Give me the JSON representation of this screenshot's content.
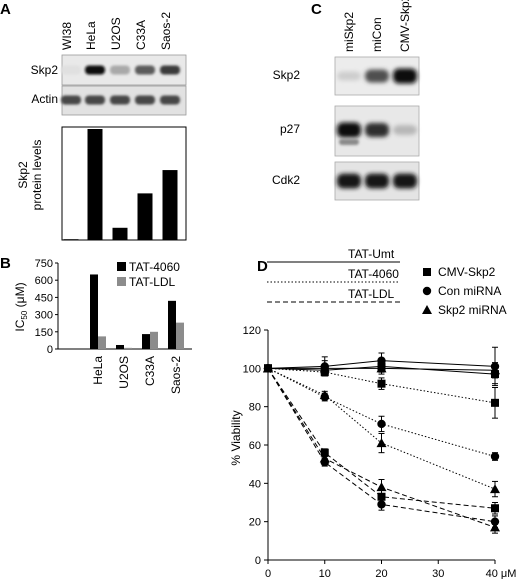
{
  "panels": {
    "A": {
      "label": "A",
      "lanes": [
        "WI38",
        "HeLa",
        "U2OS",
        "C33A",
        "Saos-2"
      ],
      "blots": [
        "Skp2",
        "Actin"
      ],
      "ylabel_lines": [
        "Skp2",
        "protein levels"
      ],
      "chart_data": {
        "type": "bar",
        "categories": [
          "WI38",
          "HeLa",
          "U2OS",
          "C33A",
          "Saos-2"
        ],
        "values": [
          0,
          100,
          11,
          42,
          63
        ],
        "ylim": [
          0,
          100
        ]
      },
      "band_intensity": {
        "Skp2": [
          0.05,
          1.0,
          0.3,
          0.65,
          0.8
        ],
        "Actin": [
          0.75,
          0.75,
          0.75,
          0.75,
          0.75
        ]
      }
    },
    "B": {
      "label": "B",
      "ylabel_main": "IC",
      "ylabel_sub": "50",
      "ylabel_unit": " (μM)",
      "chart_data": {
        "type": "bar",
        "categories": [
          "HeLa",
          "U2OS",
          "C33A",
          "Saos-2"
        ],
        "series": [
          {
            "name": "TAT-4060",
            "color": "#000000",
            "values": [
              650,
              35,
              130,
              420
            ]
          },
          {
            "name": "TAT-LDL",
            "color": "#8c8c8c",
            "values": [
              110,
              10,
              150,
              230
            ]
          }
        ],
        "yticks": [
          "0",
          "150",
          "300",
          "450",
          "600",
          "750"
        ],
        "ylim": [
          0,
          750
        ],
        "legend": "top-right"
      }
    },
    "C": {
      "label": "C",
      "lanes": [
        "miSkp2",
        "miCon",
        "CMV-Skp2"
      ],
      "blots": [
        "Skp2",
        "p27",
        "Cdk2"
      ],
      "band_intensity": {
        "Skp2": [
          0.15,
          0.7,
          1.0
        ],
        "p27": [
          1.0,
          0.85,
          0.25
        ],
        "Cdk2": [
          0.95,
          0.95,
          0.95
        ]
      }
    },
    "D": {
      "label": "D",
      "line_legend": [
        "TAT-Umt",
        "TAT-4060",
        "TAT-LDL"
      ],
      "marker_legend": [
        "CMV-Skp2",
        "Con miRNA",
        "Skp2 miRNA"
      ],
      "ylabel": "% Viability",
      "xticks": [
        "0",
        "10",
        "20",
        "30",
        "40 μM"
      ],
      "yticks": [
        "0",
        "20",
        "40",
        "60",
        "80",
        "100",
        "120"
      ],
      "chart_data": {
        "type": "line",
        "x": [
          0,
          10,
          20,
          40
        ],
        "xlim": [
          0,
          40
        ],
        "ylim": [
          0,
          120
        ],
        "series": [
          {
            "name": "TAT-Umt",
            "cell": "CMV-Skp2",
            "marker": "square",
            "dash": "solid",
            "values": [
              100,
              99,
              101,
              97
            ],
            "err": [
              0,
              3,
              3,
              5
            ]
          },
          {
            "name": "TAT-Umt",
            "cell": "Con miRNA",
            "marker": "circle",
            "dash": "solid",
            "values": [
              100,
              101,
              104,
              101
            ],
            "err": [
              0,
              5,
              4,
              10
            ]
          },
          {
            "name": "TAT-Umt",
            "cell": "Skp2 miRNA",
            "marker": "triangle",
            "dash": "solid",
            "values": [
              100,
              100,
              100,
              99
            ],
            "err": [
              0,
              4,
              3,
              4
            ]
          },
          {
            "name": "TAT-4060",
            "cell": "CMV-Skp2",
            "marker": "square",
            "dash": "dotted",
            "values": [
              100,
              98,
              92,
              82
            ],
            "err": [
              0,
              2,
              3,
              8
            ]
          },
          {
            "name": "TAT-4060",
            "cell": "Con miRNA",
            "marker": "circle",
            "dash": "dotted",
            "values": [
              100,
              85,
              71,
              54
            ],
            "err": [
              0,
              2,
              4,
              2
            ]
          },
          {
            "name": "TAT-4060",
            "cell": "Skp2 miRNA",
            "marker": "triangle",
            "dash": "dotted",
            "values": [
              100,
              86,
              61,
              37
            ],
            "err": [
              0,
              2,
              5,
              4
            ]
          },
          {
            "name": "TAT-LDL",
            "cell": "CMV-Skp2",
            "marker": "square",
            "dash": "dashed",
            "values": [
              100,
              56,
              33,
              27
            ],
            "err": [
              0,
              2,
              4,
              3
            ]
          },
          {
            "name": "TAT-LDL",
            "cell": "Con miRNA",
            "marker": "circle",
            "dash": "dashed",
            "values": [
              100,
              51,
              29,
              20
            ],
            "err": [
              0,
              2,
              3,
              3
            ]
          },
          {
            "name": "TAT-LDL",
            "cell": "Skp2 miRNA",
            "marker": "triangle",
            "dash": "dashed",
            "values": [
              100,
              53,
              38,
              17
            ],
            "err": [
              0,
              2,
              4,
              3
            ]
          }
        ]
      }
    }
  }
}
